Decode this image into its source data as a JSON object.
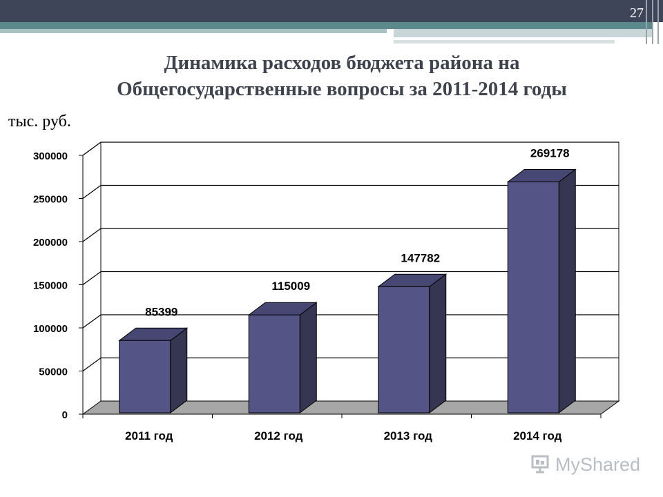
{
  "slide": {
    "page_number": "27",
    "title_line1": "Динамика расходов бюджета района на",
    "title_line2": "Общегосударственные вопросы за 2011-2014 годы",
    "unit_label": "тыс. руб.",
    "watermark": "MyShared",
    "colors": {
      "bar_front": "#545486",
      "bar_side": "#363653",
      "bar_top": "#474773",
      "floor": "#a6a6a6",
      "header": "#3f4558",
      "accent": "#5c8a8c"
    }
  },
  "chart_data": {
    "type": "bar",
    "title": "",
    "xlabel": "",
    "ylabel": "",
    "categories": [
      "2011 год",
      "2012 год",
      "2013 год",
      "2014 год"
    ],
    "values": [
      85399,
      115009,
      147782,
      269178
    ],
    "data_labels": [
      "85399",
      "115009",
      "147782",
      "269178"
    ],
    "ylim": [
      0,
      300000
    ],
    "yticks": [
      0,
      50000,
      100000,
      150000,
      200000,
      250000,
      300000
    ],
    "ytick_labels": [
      "0",
      "50000",
      "100000",
      "150000",
      "200000",
      "250000",
      "300000"
    ],
    "grid": true,
    "legend": "none",
    "style": "3d"
  }
}
